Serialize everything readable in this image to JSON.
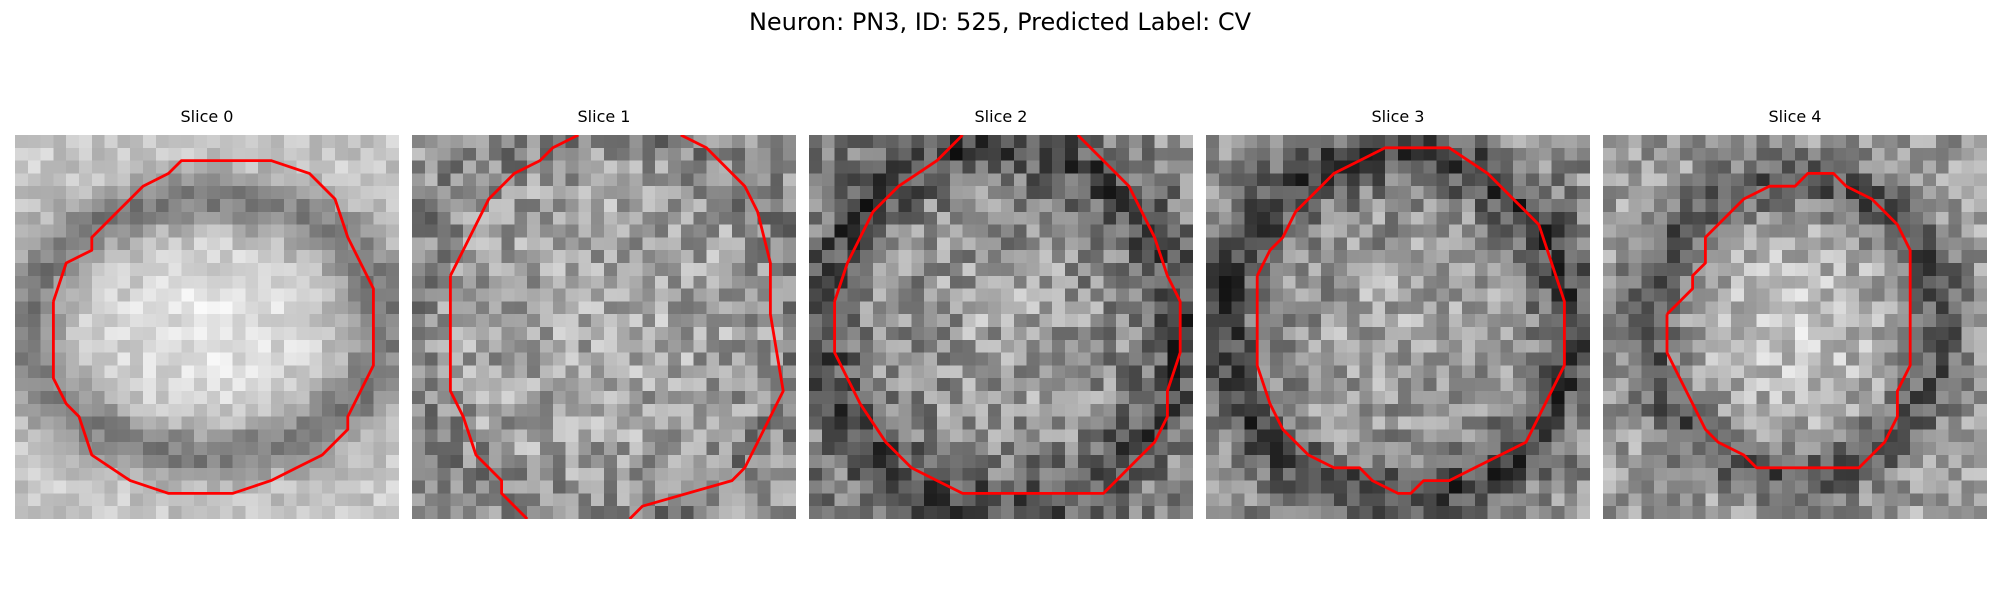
{
  "figure": {
    "title": "Neuron: PN3, ID: 525, Predicted Label: CV"
  },
  "panels": [
    {
      "title": "Slice 0",
      "contour_color": "#ff0000",
      "image": "grayscale-microscopy-slice"
    },
    {
      "title": "Slice 1",
      "contour_color": "#ff0000",
      "image": "grayscale-microscopy-slice"
    },
    {
      "title": "Slice 2",
      "contour_color": "#ff0000",
      "image": "grayscale-microscopy-slice"
    },
    {
      "title": "Slice 3",
      "contour_color": "#ff0000",
      "image": "grayscale-microscopy-slice"
    },
    {
      "title": "Slice 4",
      "contour_color": "#ff0000",
      "image": "grayscale-microscopy-slice"
    }
  ]
}
